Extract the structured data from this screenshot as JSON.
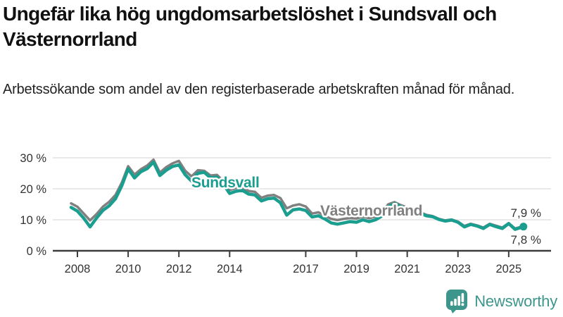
{
  "title": "Ungefär lika hög ungdomsarbetslöshet i Sundsvall och Västernorrland",
  "subtitle": "Arbetssökande som andel av den registerbaserade arbetskraften månad för månad.",
  "branding": {
    "logo_text": "Newsworthy",
    "logo_icon": "newsworthy-bar-chart-bubble-icon",
    "logo_color": "#3d968c"
  },
  "colors": {
    "sundsvall": "#1a9e8f",
    "vasternorrland": "#808080",
    "grid": "#dcdcdc",
    "axis": "#3c3c3c",
    "tick_text": "#333333",
    "title_text": "#111111"
  },
  "chart_data": {
    "type": "line",
    "title": "Ungefär lika hög ungdomsarbetslöshet i Sundsvall och Västernorrland",
    "xlabel": "",
    "ylabel": "",
    "grid": "horizontal",
    "legend_position": "inline-labels-on-lines",
    "xlim": [
      2007.6,
      2026.3
    ],
    "ylim": [
      0,
      33
    ],
    "yticks": [
      "0 %",
      "10 %",
      "20 %",
      "30 %"
    ],
    "ytick_values": [
      0,
      10,
      20,
      30
    ],
    "xticks": [
      "2008",
      "2010",
      "2012",
      "2014",
      "2017",
      "2019",
      "2021",
      "2023",
      "2025"
    ],
    "xtick_values": [
      2008,
      2010,
      2012,
      2014,
      2017,
      2019,
      2021,
      2023,
      2025
    ],
    "x": [
      2007.75,
      2008,
      2008.25,
      2008.5,
      2008.75,
      2009,
      2009.25,
      2009.5,
      2009.75,
      2010,
      2010.25,
      2010.5,
      2010.75,
      2011,
      2011.25,
      2011.5,
      2011.75,
      2012,
      2012.25,
      2012.5,
      2012.75,
      2013,
      2013.25,
      2013.5,
      2013.75,
      2014,
      2014.25,
      2014.5,
      2014.75,
      2015,
      2015.25,
      2015.5,
      2015.75,
      2016,
      2016.25,
      2016.5,
      2016.75,
      2017,
      2017.25,
      2017.5,
      2017.75,
      2018,
      2018.25,
      2018.5,
      2018.75,
      2019,
      2019.25,
      2019.5,
      2019.75,
      2020,
      2020.25,
      2020.5,
      2020.75,
      2021,
      2021.25,
      2021.5,
      2021.75,
      2022,
      2022.25,
      2022.5,
      2022.75,
      2023,
      2023.25,
      2023.5,
      2023.75,
      2024,
      2024.25,
      2024.5,
      2024.75,
      2025,
      2025.25,
      2025.58
    ],
    "series": [
      {
        "name": "Västernorrland",
        "color": "#808080",
        "end_label": "7,9 %",
        "end_dot": false,
        "values": [
          15.3,
          14.2,
          12.0,
          9.8,
          11.8,
          14.2,
          15.8,
          18.0,
          22.0,
          27.3,
          24.6,
          26.3,
          27.5,
          29.4,
          25.2,
          27.0,
          28.2,
          29.0,
          25.8,
          24.0,
          26.0,
          25.8,
          24.3,
          24.5,
          22.5,
          19.6,
          20.2,
          20.4,
          19.3,
          19.0,
          17.1,
          17.8,
          18.0,
          17.0,
          13.7,
          14.6,
          15.0,
          14.3,
          12.0,
          12.4,
          11.3,
          10.3,
          9.9,
          10.3,
          10.6,
          10.4,
          11.0,
          10.5,
          11.0,
          12.2,
          15.0,
          15.7,
          14.7,
          14.0,
          13.0,
          12.5,
          11.6,
          11.2,
          10.3,
          9.8,
          10.1,
          9.4,
          8.0,
          8.7,
          8.2,
          7.5,
          8.7,
          8.1,
          7.5,
          8.9,
          7.2,
          7.9
        ]
      },
      {
        "name": "Sundsvall",
        "color": "#1a9e8f",
        "end_label": "7,8 %",
        "end_dot": true,
        "values": [
          14.0,
          12.8,
          10.5,
          7.7,
          10.5,
          13.0,
          14.5,
          16.8,
          21.0,
          26.4,
          23.5,
          25.5,
          26.5,
          28.6,
          24.3,
          26.0,
          27.2,
          27.7,
          24.5,
          22.5,
          25.0,
          25.3,
          23.5,
          23.8,
          21.5,
          18.5,
          19.2,
          19.5,
          18.3,
          18.0,
          16.1,
          16.8,
          17.0,
          15.5,
          11.5,
          13.2,
          13.5,
          13.0,
          10.9,
          11.3,
          10.3,
          9.0,
          8.6,
          9.0,
          9.4,
          9.2,
          10.0,
          9.4,
          10.0,
          11.2,
          14.2,
          15.2,
          14.2,
          13.6,
          12.6,
          12.2,
          11.3,
          11.0,
          10.1,
          9.6,
          9.9,
          9.2,
          7.7,
          8.5,
          8.0,
          7.2,
          8.5,
          7.8,
          7.2,
          8.8,
          6.9,
          7.8
        ]
      }
    ]
  }
}
